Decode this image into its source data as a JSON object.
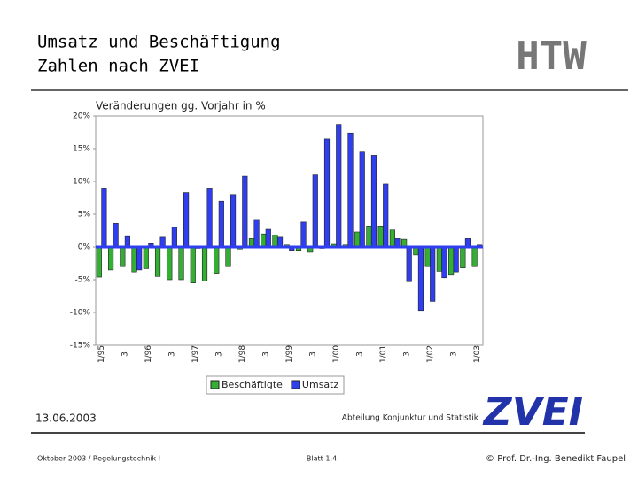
{
  "slide": {
    "title_lines": [
      "Umsatz und Beschäftigung",
      "Zahlen nach ZVEI"
    ],
    "logo_top": "HTW",
    "logo_bottom": "ZVEI",
    "date": "13.06.2003",
    "department": "Abteilung Konjunktur und Statistik",
    "footer_left": "Oktober 2003 / Regelungstechnik I",
    "footer_center": "Blatt 1.4",
    "footer_right": "© Prof. Dr.-Ing. Benedikt Faupel"
  },
  "chart_data": {
    "type": "bar",
    "subtitle": "Veränderungen gg. Vorjahr in %",
    "categories": [
      "1/95",
      null,
      "3",
      null,
      "1/96",
      null,
      "3",
      null,
      "1/97",
      null,
      "3",
      null,
      "1/98",
      null,
      "3",
      null,
      "1/99",
      null,
      "3",
      null,
      "1/00",
      null,
      "3",
      null,
      "1/01",
      null,
      "3",
      null,
      "1/02",
      null,
      "3",
      null,
      "1/03"
    ],
    "series": [
      {
        "name": "Beschäftigte",
        "color": "#33b033",
        "values": [
          -4.6,
          -3.5,
          -3,
          -3.8,
          -3.3,
          -4.5,
          -5,
          -5,
          -5.5,
          -5.2,
          -4,
          -3,
          -0.3,
          1.3,
          2,
          1.8,
          0.3,
          -0.5,
          -0.8,
          -0.2,
          0.4,
          0.3,
          2.3,
          3.2,
          3.2,
          2.6,
          1.2,
          -1.2,
          -3,
          -3.7,
          -4.3,
          -3.2,
          -3
        ]
      },
      {
        "name": "Umsatz",
        "color": "#2f3ff0",
        "values": [
          9,
          3.6,
          1.6,
          -3.5,
          0.5,
          1.5,
          3,
          8.3,
          -0.2,
          9,
          7,
          8,
          10.8,
          4.2,
          2.7,
          1.5,
          -0.5,
          3.8,
          11,
          16.5,
          18.7,
          17.4,
          14.5,
          14,
          9.6,
          1.3,
          -5.3,
          -9.7,
          -8.3,
          -4.7,
          -3.8,
          1.3,
          0.3
        ]
      }
    ],
    "ylim": [
      -15,
      20
    ],
    "yticks": [
      {
        "value": 20,
        "label": "20%"
      },
      {
        "value": 15,
        "label": "15%"
      },
      {
        "value": 10,
        "label": "10%"
      },
      {
        "value": 5,
        "label": "5%"
      },
      {
        "value": 0,
        "label": "0%"
      },
      {
        "value": -5,
        "label": "-5%"
      },
      {
        "value": -10,
        "label": "-10%"
      },
      {
        "value": -15,
        "label": "-15%"
      }
    ],
    "grid": false,
    "legend": "bottom"
  }
}
